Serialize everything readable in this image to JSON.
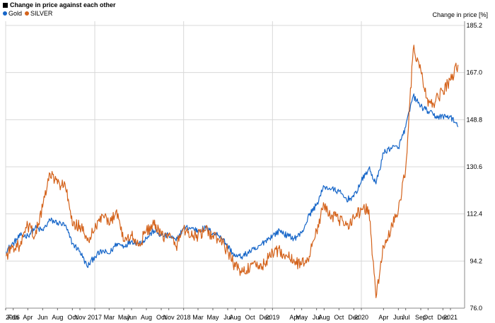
{
  "chart_data": {
    "type": "line",
    "title": "Change in price against each other",
    "ylabel": "Change in price [%]",
    "ylim": [
      76.0,
      185.2
    ],
    "yticks": [
      76.0,
      94.2,
      112.4,
      130.6,
      148.8,
      167.0,
      185.2
    ],
    "xlim": [
      "2016-01-01",
      "2021-02-28"
    ],
    "grid": true,
    "legend_position": "top-left",
    "x_tick_labels": [
      "2016",
      "Feb",
      "Apr",
      "Jun",
      "Aug",
      "Oct",
      "Nov",
      "2017",
      "Mar",
      "May",
      "Jun",
      "Aug",
      "Oct",
      "Nov",
      "2018",
      "Mar",
      "May",
      "Jul",
      "Aug",
      "Oct",
      "Dec",
      "2019",
      "Apr",
      "May",
      "Jul",
      "Aug",
      "Oct",
      "Dec",
      "2020",
      "Apr",
      "Jun",
      "Jul",
      "Sep",
      "Oct",
      "Dec",
      "2021"
    ],
    "x_tick_dates": [
      "2016-01-01",
      "2016-02-01",
      "2016-04-01",
      "2016-06-01",
      "2016-08-01",
      "2016-10-01",
      "2016-11-01",
      "2017-01-01",
      "2017-03-01",
      "2017-05-01",
      "2017-06-01",
      "2017-08-01",
      "2017-10-01",
      "2017-11-01",
      "2018-01-01",
      "2018-03-01",
      "2018-05-01",
      "2018-07-01",
      "2018-08-01",
      "2018-10-01",
      "2018-12-01",
      "2019-01-01",
      "2019-04-01",
      "2019-05-01",
      "2019-07-01",
      "2019-08-01",
      "2019-10-01",
      "2019-12-01",
      "2020-01-01",
      "2020-04-01",
      "2020-06-01",
      "2020-07-01",
      "2020-09-01",
      "2020-10-01",
      "2020-12-01",
      "2021-01-01"
    ],
    "series": [
      {
        "name": "Gold",
        "color": "#1565c8",
        "points": [
          [
            "2016-01-01",
            98
          ],
          [
            "2016-02-01",
            101
          ],
          [
            "2016-03-01",
            104
          ],
          [
            "2016-04-01",
            104
          ],
          [
            "2016-05-01",
            107
          ],
          [
            "2016-06-01",
            106
          ],
          [
            "2016-07-01",
            110
          ],
          [
            "2016-08-01",
            109
          ],
          [
            "2016-09-01",
            108
          ],
          [
            "2016-10-01",
            101
          ],
          [
            "2016-11-01",
            98
          ],
          [
            "2016-12-01",
            92
          ],
          [
            "2017-01-01",
            96
          ],
          [
            "2017-02-01",
            98
          ],
          [
            "2017-03-01",
            97
          ],
          [
            "2017-04-01",
            101
          ],
          [
            "2017-05-01",
            100
          ],
          [
            "2017-06-01",
            102
          ],
          [
            "2017-07-01",
            101
          ],
          [
            "2017-08-01",
            103
          ],
          [
            "2017-09-01",
            106
          ],
          [
            "2017-10-01",
            104
          ],
          [
            "2017-11-01",
            104
          ],
          [
            "2017-12-01",
            102
          ],
          [
            "2018-01-01",
            107
          ],
          [
            "2018-02-01",
            107
          ],
          [
            "2018-03-01",
            106
          ],
          [
            "2018-04-01",
            107
          ],
          [
            "2018-05-01",
            105
          ],
          [
            "2018-06-01",
            104
          ],
          [
            "2018-07-01",
            100
          ],
          [
            "2018-08-01",
            96
          ],
          [
            "2018-09-01",
            96
          ],
          [
            "2018-10-01",
            98
          ],
          [
            "2018-11-01",
            99
          ],
          [
            "2018-12-01",
            102
          ],
          [
            "2019-01-01",
            104
          ],
          [
            "2019-02-01",
            106
          ],
          [
            "2019-03-01",
            104
          ],
          [
            "2019-04-01",
            103
          ],
          [
            "2019-05-01",
            105
          ],
          [
            "2019-06-01",
            112
          ],
          [
            "2019-07-01",
            116
          ],
          [
            "2019-08-01",
            123
          ],
          [
            "2019-09-01",
            122
          ],
          [
            "2019-10-01",
            121
          ],
          [
            "2019-11-01",
            118
          ],
          [
            "2019-12-01",
            119
          ],
          [
            "2020-01-01",
            125
          ],
          [
            "2020-02-01",
            130
          ],
          [
            "2020-03-01",
            124
          ],
          [
            "2020-04-01",
            136
          ],
          [
            "2020-05-01",
            138
          ],
          [
            "2020-06-01",
            138
          ],
          [
            "2020-07-01",
            146
          ],
          [
            "2020-08-01",
            158
          ],
          [
            "2020-09-01",
            154
          ],
          [
            "2020-10-01",
            152
          ],
          [
            "2020-11-01",
            150
          ],
          [
            "2020-12-01",
            150
          ],
          [
            "2021-01-01",
            150
          ],
          [
            "2021-02-01",
            146
          ]
        ]
      },
      {
        "name": "SILVER",
        "color": "#d4631c",
        "points": [
          [
            "2016-01-01",
            96
          ],
          [
            "2016-02-01",
            100
          ],
          [
            "2016-03-01",
            100
          ],
          [
            "2016-04-01",
            108
          ],
          [
            "2016-05-01",
            104
          ],
          [
            "2016-06-01",
            115
          ],
          [
            "2016-07-01",
            128
          ],
          [
            "2016-08-01",
            124
          ],
          [
            "2016-09-01",
            124
          ],
          [
            "2016-10-01",
            108
          ],
          [
            "2016-11-01",
            108
          ],
          [
            "2016-12-01",
            102
          ],
          [
            "2017-01-01",
            106
          ],
          [
            "2017-02-01",
            112
          ],
          [
            "2017-03-01",
            108
          ],
          [
            "2017-04-01",
            114
          ],
          [
            "2017-05-01",
            102
          ],
          [
            "2017-06-01",
            104
          ],
          [
            "2017-07-01",
            100
          ],
          [
            "2017-08-01",
            106
          ],
          [
            "2017-09-01",
            108
          ],
          [
            "2017-10-01",
            104
          ],
          [
            "2017-11-01",
            104
          ],
          [
            "2017-12-01",
            100
          ],
          [
            "2018-01-01",
            107
          ],
          [
            "2018-02-01",
            104
          ],
          [
            "2018-03-01",
            104
          ],
          [
            "2018-04-01",
            106
          ],
          [
            "2018-05-01",
            104
          ],
          [
            "2018-06-01",
            102
          ],
          [
            "2018-07-01",
            98
          ],
          [
            "2018-08-01",
            92
          ],
          [
            "2018-09-01",
            90
          ],
          [
            "2018-10-01",
            92
          ],
          [
            "2018-11-01",
            92
          ],
          [
            "2018-12-01",
            93
          ],
          [
            "2019-01-01",
            98
          ],
          [
            "2019-02-01",
            98
          ],
          [
            "2019-03-01",
            96
          ],
          [
            "2019-04-01",
            94
          ],
          [
            "2019-05-01",
            93
          ],
          [
            "2019-06-01",
            96
          ],
          [
            "2019-07-01",
            106
          ],
          [
            "2019-08-01",
            116
          ],
          [
            "2019-09-01",
            112
          ],
          [
            "2019-10-01",
            110
          ],
          [
            "2019-11-01",
            108
          ],
          [
            "2019-12-01",
            111
          ],
          [
            "2020-01-01",
            114
          ],
          [
            "2020-02-01",
            114
          ],
          [
            "2020-03-01",
            80
          ],
          [
            "2020-04-01",
            100
          ],
          [
            "2020-05-01",
            106
          ],
          [
            "2020-06-01",
            114
          ],
          [
            "2020-07-01",
            130
          ],
          [
            "2020-08-01",
            176
          ],
          [
            "2020-09-01",
            168
          ],
          [
            "2020-10-01",
            154
          ],
          [
            "2020-11-01",
            156
          ],
          [
            "2020-12-01",
            160
          ],
          [
            "2021-01-01",
            164
          ],
          [
            "2021-02-01",
            170
          ]
        ]
      }
    ]
  }
}
